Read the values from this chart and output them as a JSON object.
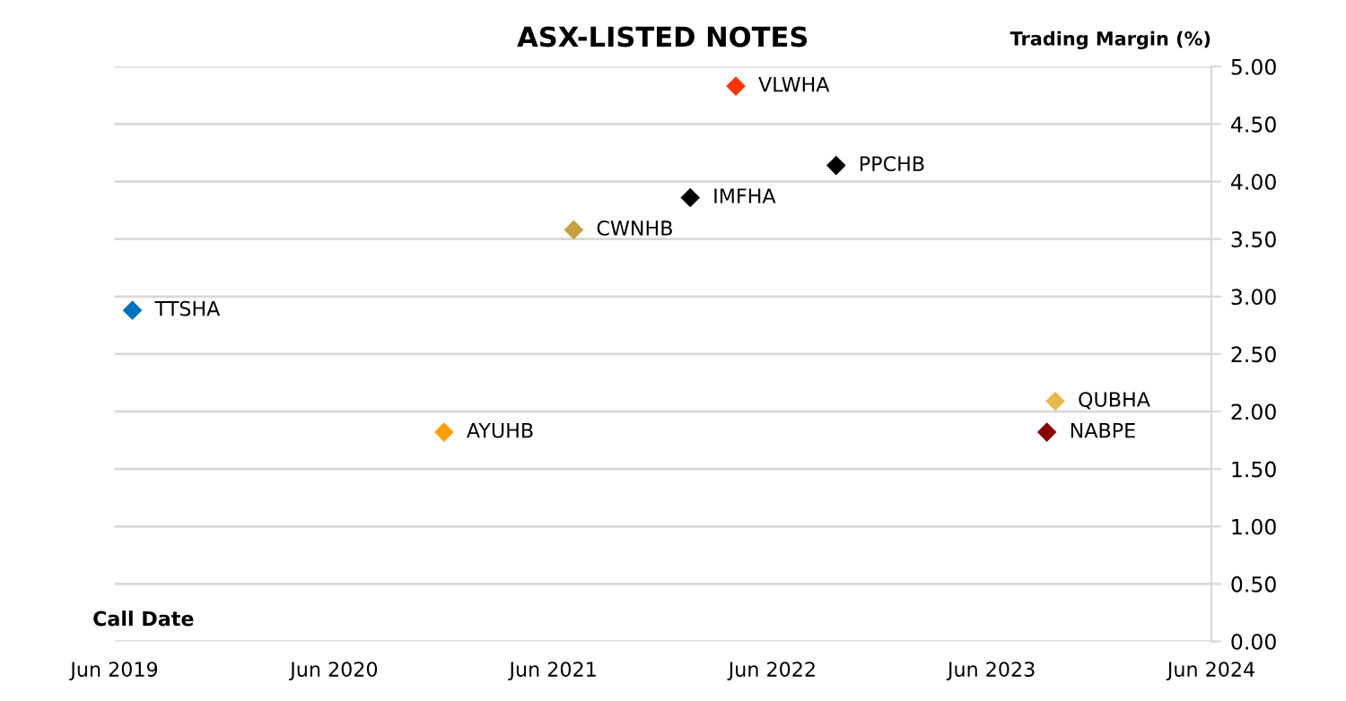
{
  "chart_data": {
    "type": "scatter",
    "title": "ASX-LISTED NOTES",
    "xlabel": "Call Date",
    "ylabel": "Trading Margin (%)",
    "series": [
      {
        "name": "TTSHA",
        "color": "#0070c0",
        "x": [
          "2019-07-01"
        ],
        "values": [
          2.88
        ]
      },
      {
        "name": "AYUHB",
        "color": "#ffa000",
        "x": [
          "2020-12-01"
        ],
        "values": [
          1.82
        ]
      },
      {
        "name": "CWNHB",
        "color": "#c8a040",
        "x": [
          "2021-07-05"
        ],
        "values": [
          3.58
        ]
      },
      {
        "name": "IMFHA",
        "color": "#000000",
        "x": [
          "2022-01-15"
        ],
        "values": [
          3.86
        ]
      },
      {
        "name": "VLWHA",
        "color": "#ff3300",
        "x": [
          "2022-04-01"
        ],
        "values": [
          4.83
        ]
      },
      {
        "name": "PPCHB",
        "color": "#000000",
        "x": [
          "2022-09-15"
        ],
        "values": [
          4.14
        ]
      },
      {
        "name": "QUBHA",
        "color": "#e8b84a",
        "x": [
          "2023-09-15"
        ],
        "values": [
          2.09
        ]
      },
      {
        "name": "NABPE",
        "color": "#8b0000",
        "x": [
          "2023-09-01"
        ],
        "values": [
          1.82
        ]
      }
    ],
    "xlim": [
      "2019-06",
      "2024-06"
    ],
    "xticks": [
      {
        "value": "2019-06",
        "label": "Jun 2019"
      },
      {
        "value": "2020-06",
        "label": "Jun 2020"
      },
      {
        "value": "2021-06",
        "label": "Jun 2021"
      },
      {
        "value": "2022-06",
        "label": "Jun 2022"
      },
      {
        "value": "2023-06",
        "label": "Jun 2023"
      },
      {
        "value": "2024-06",
        "label": "Jun 2024"
      }
    ],
    "ylim": [
      0,
      5
    ],
    "yticks": [
      {
        "value": 0,
        "label": "0.00"
      },
      {
        "value": 0.5,
        "label": "0.50"
      },
      {
        "value": 1,
        "label": "1.00"
      },
      {
        "value": 1.5,
        "label": "1.50"
      },
      {
        "value": 2,
        "label": "2.00"
      },
      {
        "value": 2.5,
        "label": "2.50"
      },
      {
        "value": 3,
        "label": "3.00"
      },
      {
        "value": 3.5,
        "label": "3.50"
      },
      {
        "value": 4,
        "label": "4.00"
      },
      {
        "value": 4.5,
        "label": "4.50"
      },
      {
        "value": 5,
        "label": "5.00"
      }
    ],
    "grid": "y",
    "legend": false,
    "marker": "diamond"
  }
}
